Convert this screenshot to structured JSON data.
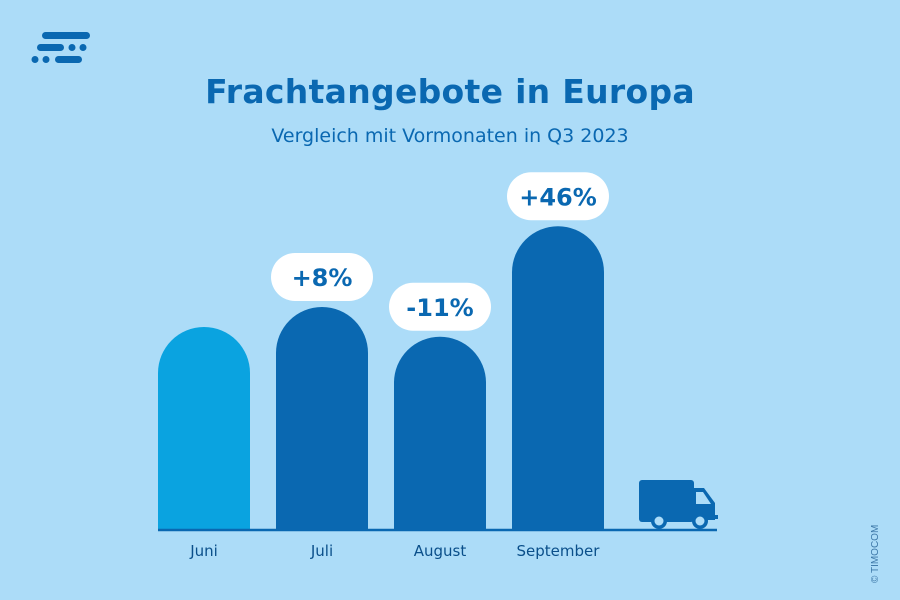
{
  "chart_data": {
    "type": "bar",
    "title": "Frachtangebote in Europa",
    "subtitle": "Vergleich mit Vormonaten in Q3 2023",
    "categories": [
      "Juni",
      "Juli",
      "August",
      "September"
    ],
    "values": [
      100,
      108,
      96.1,
      140.3
    ],
    "data_labels": [
      "",
      "+8%",
      "-11%",
      "+46%"
    ],
    "colors": [
      "#0aa3e0",
      "#0a68b1",
      "#0a68b1",
      "#0a68b1"
    ],
    "xlabel": "",
    "ylabel": "",
    "grid": false,
    "legend": "none"
  },
  "branding": {
    "logo": "timocom-logo-icon",
    "copyright": "© TIMOCOM",
    "decoration": "truck-icon"
  },
  "colors": {
    "background": "#acdcf8",
    "primary": "#0a68b1",
    "accent": "#0aa3e0",
    "label_bg": "#ffffff"
  }
}
